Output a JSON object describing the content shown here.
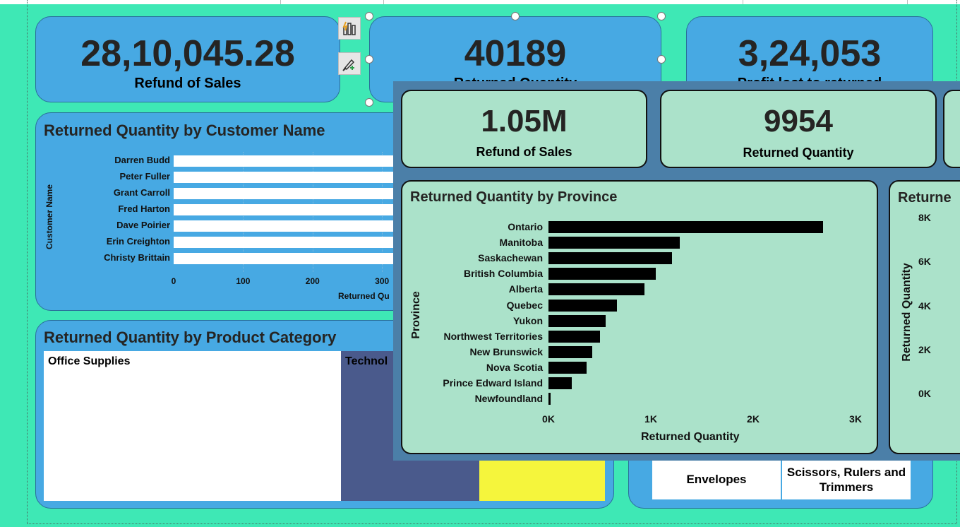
{
  "kpis": [
    {
      "value": "28,10,045.28",
      "label": "Refund of Sales"
    },
    {
      "value": "40189",
      "label": "Returned Quantity"
    },
    {
      "value": "3,24,053",
      "label": "Profit lost to returned"
    }
  ],
  "customer_chart": {
    "title": "Returned Quantity by Customer Name",
    "ylabel": "Customer Name",
    "xlabel": "Returned Qu",
    "ticks": [
      "0",
      "100",
      "200",
      "300"
    ]
  },
  "category_chart": {
    "title": "Returned Quantity by Product Category",
    "tiles": [
      "Office Supplies",
      "Technol"
    ]
  },
  "subcategory_tiles": [
    "Envelopes",
    "Scissors, Rulers and Trimmers"
  ],
  "overlay": {
    "kpis": [
      {
        "value": "1.05M",
        "label": "Refund of Sales"
      },
      {
        "value": "9954",
        "label": "Returned Quantity"
      }
    ],
    "right_chart": {
      "title": "Returne",
      "ylabel": "Returned Quantity",
      "ticks": [
        "8K",
        "6K",
        "4K",
        "2K",
        "0K"
      ]
    }
  },
  "colors": {
    "page_bg": "#3ee8b5",
    "card_bg": "#47a9e3",
    "overlay_bg": "#4b7fa8",
    "overlay_card": "#abe2ca",
    "technology_tile": "#4a5a8c",
    "yellow_tile": "#f5f53c"
  },
  "icons": [
    "chart-analytics-icon",
    "format-brush-icon"
  ],
  "chart_data": [
    {
      "type": "bar",
      "orientation": "horizontal",
      "title": "Returned Quantity by Customer Name",
      "ylabel": "Customer Name",
      "xlabel": "Returned Qu",
      "categories": [
        "Darren Budd",
        "Peter Fuller",
        "Grant Carroll",
        "Fred Harton",
        "Dave Poirier",
        "Erin Creighton",
        "Christy Brittain"
      ],
      "xlim": [
        0,
        300
      ]
    },
    {
      "type": "bar",
      "orientation": "horizontal",
      "title": "Returned Quantity by Province",
      "xlabel": "Returned Quantity",
      "ylabel": "Province",
      "categories": [
        "Ontario",
        "Manitoba",
        "Saskachewan",
        "British Columbia",
        "Alberta",
        "Quebec",
        "Yukon",
        "Northwest Territories",
        "New Brunswick",
        "Nova Scotia",
        "Prince Edward Island",
        "Newfoundland"
      ],
      "values": [
        2680,
        1280,
        1210,
        1050,
        940,
        670,
        560,
        500,
        430,
        370,
        230,
        20
      ],
      "xlim": [
        0,
        3000
      ],
      "xticks": [
        "0K",
        "1K",
        "2K",
        "3K"
      ]
    }
  ]
}
